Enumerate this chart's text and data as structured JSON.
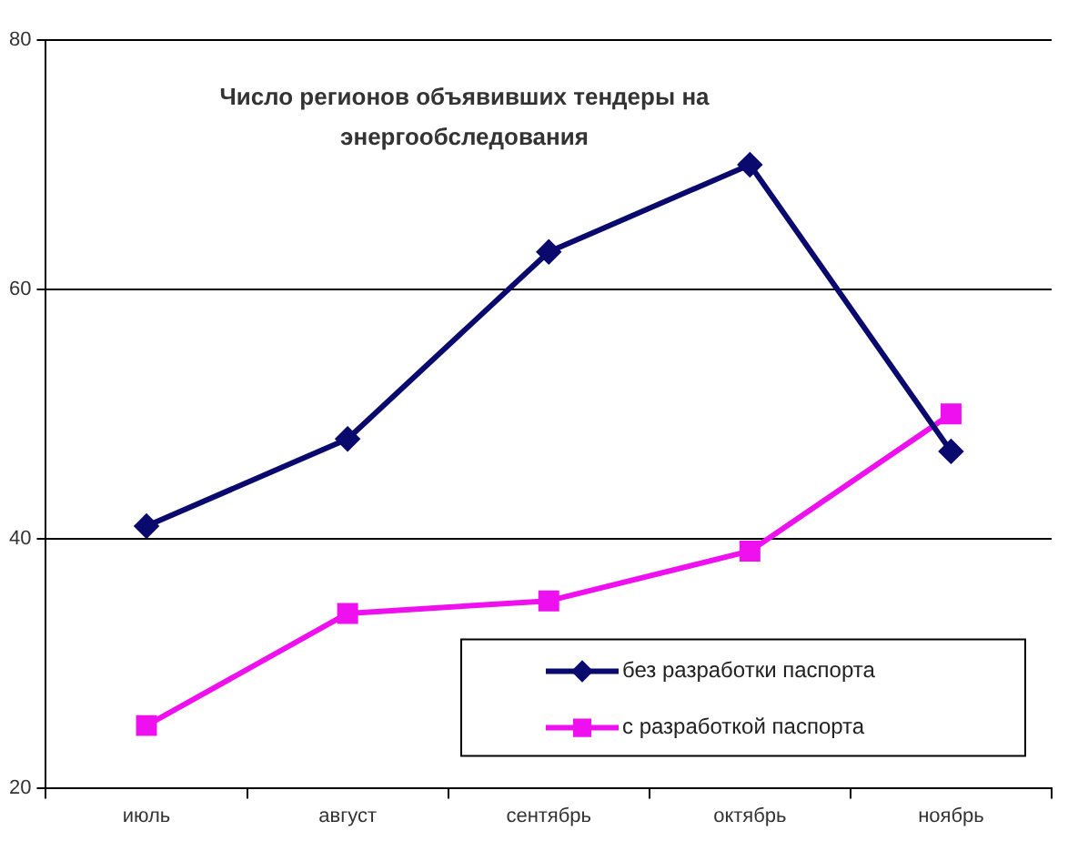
{
  "chart_data": {
    "type": "line",
    "title": "Число регионов объявивших тендеры на\nэнергообследования",
    "categories": [
      "июль",
      "август",
      "сентябрь",
      "октябрь",
      "ноябрь"
    ],
    "series": [
      {
        "name": "без разработки паспорта",
        "color": "#0a0a6e",
        "marker": "diamond",
        "values": [
          41,
          48,
          63,
          70,
          47
        ]
      },
      {
        "name": "с разработкой паспорта",
        "color": "#ee10ee",
        "marker": "square",
        "values": [
          25,
          34,
          35,
          39,
          50
        ]
      }
    ],
    "ylim": [
      20,
      80
    ],
    "yticks": [
      20,
      40,
      60,
      80
    ],
    "grid": "y",
    "legend": "bottom right",
    "line_style": "solid"
  }
}
